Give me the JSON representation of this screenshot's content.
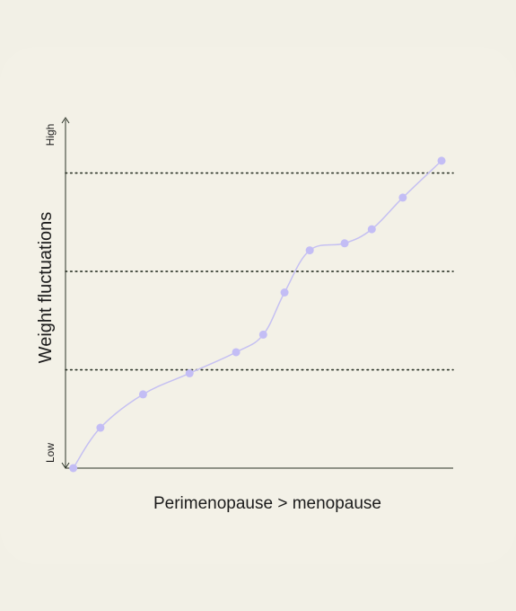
{
  "chart_data": {
    "type": "line",
    "title": "",
    "xlabel": "Perimenopause > menopause",
    "ylabel": "Weight fluctuations",
    "y_tick_labels": {
      "low": "Low",
      "high": "High"
    },
    "ylim": [
      0,
      100
    ],
    "xlim": [
      0,
      100
    ],
    "gridlines_y": [
      28,
      56,
      84
    ],
    "grid": "dotted horizontal",
    "legend": "none",
    "series": [
      {
        "x": [
          2,
          9,
          20,
          32,
          44,
          51,
          56.5,
          63,
          72,
          79,
          87,
          97
        ],
        "y": [
          0,
          11.5,
          21,
          27,
          33,
          38,
          50,
          62,
          64,
          68,
          77,
          87.5
        ]
      }
    ],
    "colors": {
      "line": "#c5c0f2",
      "marker": "#c3bdf5",
      "axis": "#2b3327",
      "background": "#f2f0e6"
    }
  }
}
